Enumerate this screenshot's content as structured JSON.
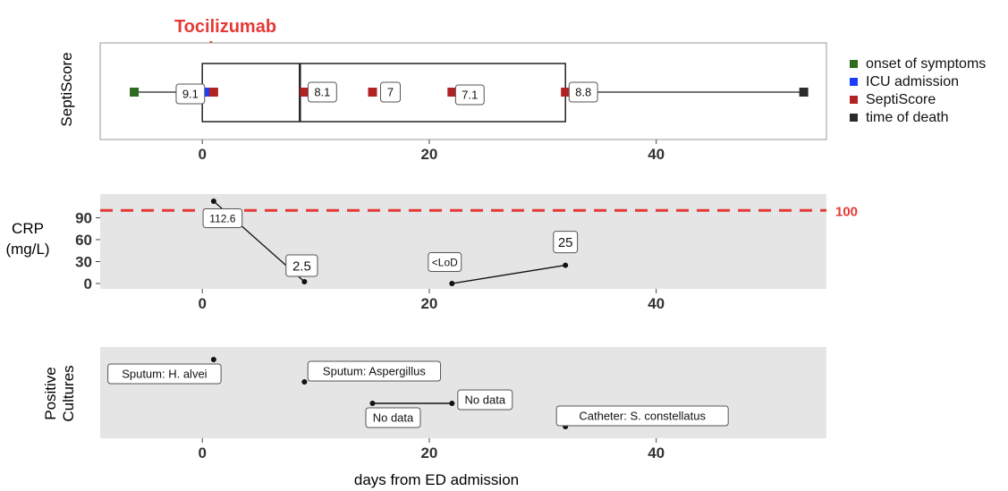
{
  "annotation": {
    "text": "Tocilizumab",
    "color": "#e53935",
    "at_x": 1
  },
  "xlabel": "days from ED admission",
  "x_ticks": [
    0,
    20,
    40
  ],
  "colors": {
    "onset": "#2e6b1f",
    "icu": "#1a3cff",
    "septiscore": "#b22222",
    "death": "#2b2b2b",
    "threshold": "#e53935",
    "panel_bg": "#e5e5e5"
  },
  "legend": [
    {
      "key": "onset",
      "label": "onset of symptoms"
    },
    {
      "key": "icu",
      "label": "ICU admission"
    },
    {
      "key": "septiscore",
      "label": "SeptiScore"
    },
    {
      "key": "death",
      "label": "time of death"
    }
  ],
  "chart_data": [
    {
      "type": "boxplot-timeline",
      "ylabel": "SeptiScore",
      "xlim": [
        -9,
        55
      ],
      "span": [
        -6,
        53
      ],
      "box": {
        "q1": 0,
        "median": 8.6,
        "q3": 32
      },
      "events": [
        {
          "key": "onset",
          "x": -6
        },
        {
          "key": "icu",
          "x": 0.4
        },
        {
          "key": "death",
          "x": 53
        }
      ],
      "points": [
        {
          "x": 1,
          "value": "9.1"
        },
        {
          "x": 9,
          "value": "8.1"
        },
        {
          "x": 15,
          "value": "7"
        },
        {
          "x": 22,
          "value": "7.1"
        },
        {
          "x": 32,
          "value": "8.8"
        }
      ]
    },
    {
      "type": "line",
      "ylabel_lines": [
        "CRP",
        "(mg/L)"
      ],
      "xlim": [
        -9,
        55
      ],
      "ylim": [
        0,
        115
      ],
      "y_ticks": [
        0,
        30,
        60,
        90
      ],
      "threshold": {
        "y": 100,
        "label": "100"
      },
      "segments": [
        [
          {
            "x": 1,
            "y": 112.6,
            "label": "112.6"
          },
          {
            "x": 9,
            "y": 2.5,
            "label": "2.5"
          }
        ],
        [
          {
            "x": 22,
            "y": 0,
            "label": "<LoD"
          },
          {
            "x": 32,
            "y": 25,
            "label": "25"
          }
        ]
      ]
    },
    {
      "type": "scatter",
      "ylabel_lines": [
        "Positive",
        "Cultures"
      ],
      "xlim": [
        -9,
        55
      ],
      "points": [
        {
          "x": 1,
          "label": "Sputum: H. alvei"
        },
        {
          "x": 9,
          "label": "Sputum: Aspergillus"
        },
        {
          "x": 15,
          "label": "No data"
        },
        {
          "x": 22,
          "label": "No data"
        },
        {
          "x": 32,
          "label": "Catheter: S. constellatus"
        }
      ],
      "ranges": [
        {
          "from": 15,
          "to": 22
        }
      ]
    }
  ]
}
